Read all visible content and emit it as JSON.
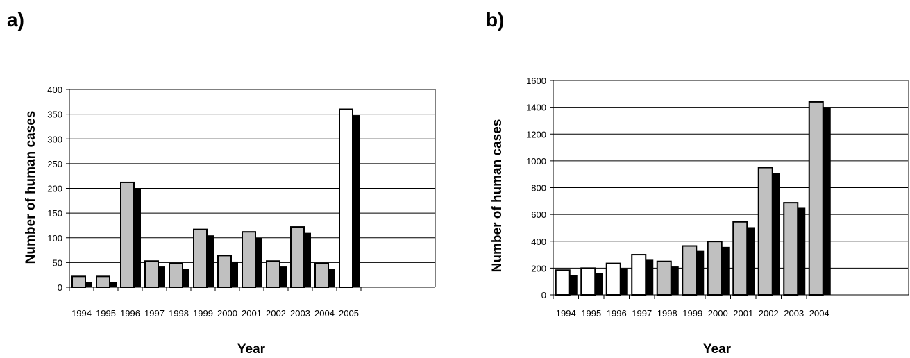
{
  "chart_data": [
    {
      "type": "bar",
      "panel_label": "a)",
      "xlabel": "Year",
      "ylabel": "Number of human cases",
      "ylim": [
        0,
        400
      ],
      "yticks": [
        0,
        50,
        100,
        150,
        200,
        250,
        300,
        350,
        400
      ],
      "grid": true,
      "categories": [
        "1994",
        "1995",
        "1996",
        "1997",
        "1998",
        "1999",
        "2000",
        "2001",
        "2002",
        "2003",
        "2004",
        "2005"
      ],
      "series": [
        {
          "values": [
            22,
            22,
            212,
            53,
            48,
            117,
            64,
            112,
            53,
            122,
            48,
            360
          ]
        },
        {
          "values": [
            10,
            10,
            200,
            42,
            37,
            105,
            52,
            100,
            42,
            110,
            37,
            348
          ]
        }
      ],
      "first_bar_fill": [
        "#c0c0c0",
        "#c0c0c0",
        "#c0c0c0",
        "#c0c0c0",
        "#c0c0c0",
        "#c0c0c0",
        "#c0c0c0",
        "#c0c0c0",
        "#c0c0c0",
        "#c0c0c0",
        "#c0c0c0",
        "#ffffff"
      ]
    },
    {
      "type": "bar",
      "panel_label": "b)",
      "xlabel": "Year",
      "ylabel": "Number of human cases",
      "ylim": [
        0,
        1600
      ],
      "yticks": [
        0,
        200,
        400,
        600,
        800,
        1000,
        1200,
        1400,
        1600
      ],
      "grid": true,
      "categories": [
        "1994",
        "1995",
        "1996",
        "1997",
        "1998",
        "1999",
        "2000",
        "2001",
        "2002",
        "2003",
        "2004"
      ],
      "series": [
        {
          "values": [
            185,
            200,
            235,
            300,
            250,
            365,
            398,
            545,
            950,
            688,
            1440
          ]
        },
        {
          "values": [
            148,
            162,
            198,
            262,
            212,
            328,
            358,
            505,
            910,
            650,
            1402
          ]
        }
      ],
      "first_bar_fill": [
        "#ffffff",
        "#ffffff",
        "#ffffff",
        "#ffffff",
        "#c0c0c0",
        "#c0c0c0",
        "#c0c0c0",
        "#c0c0c0",
        "#c0c0c0",
        "#c0c0c0",
        "#c0c0c0"
      ]
    }
  ]
}
